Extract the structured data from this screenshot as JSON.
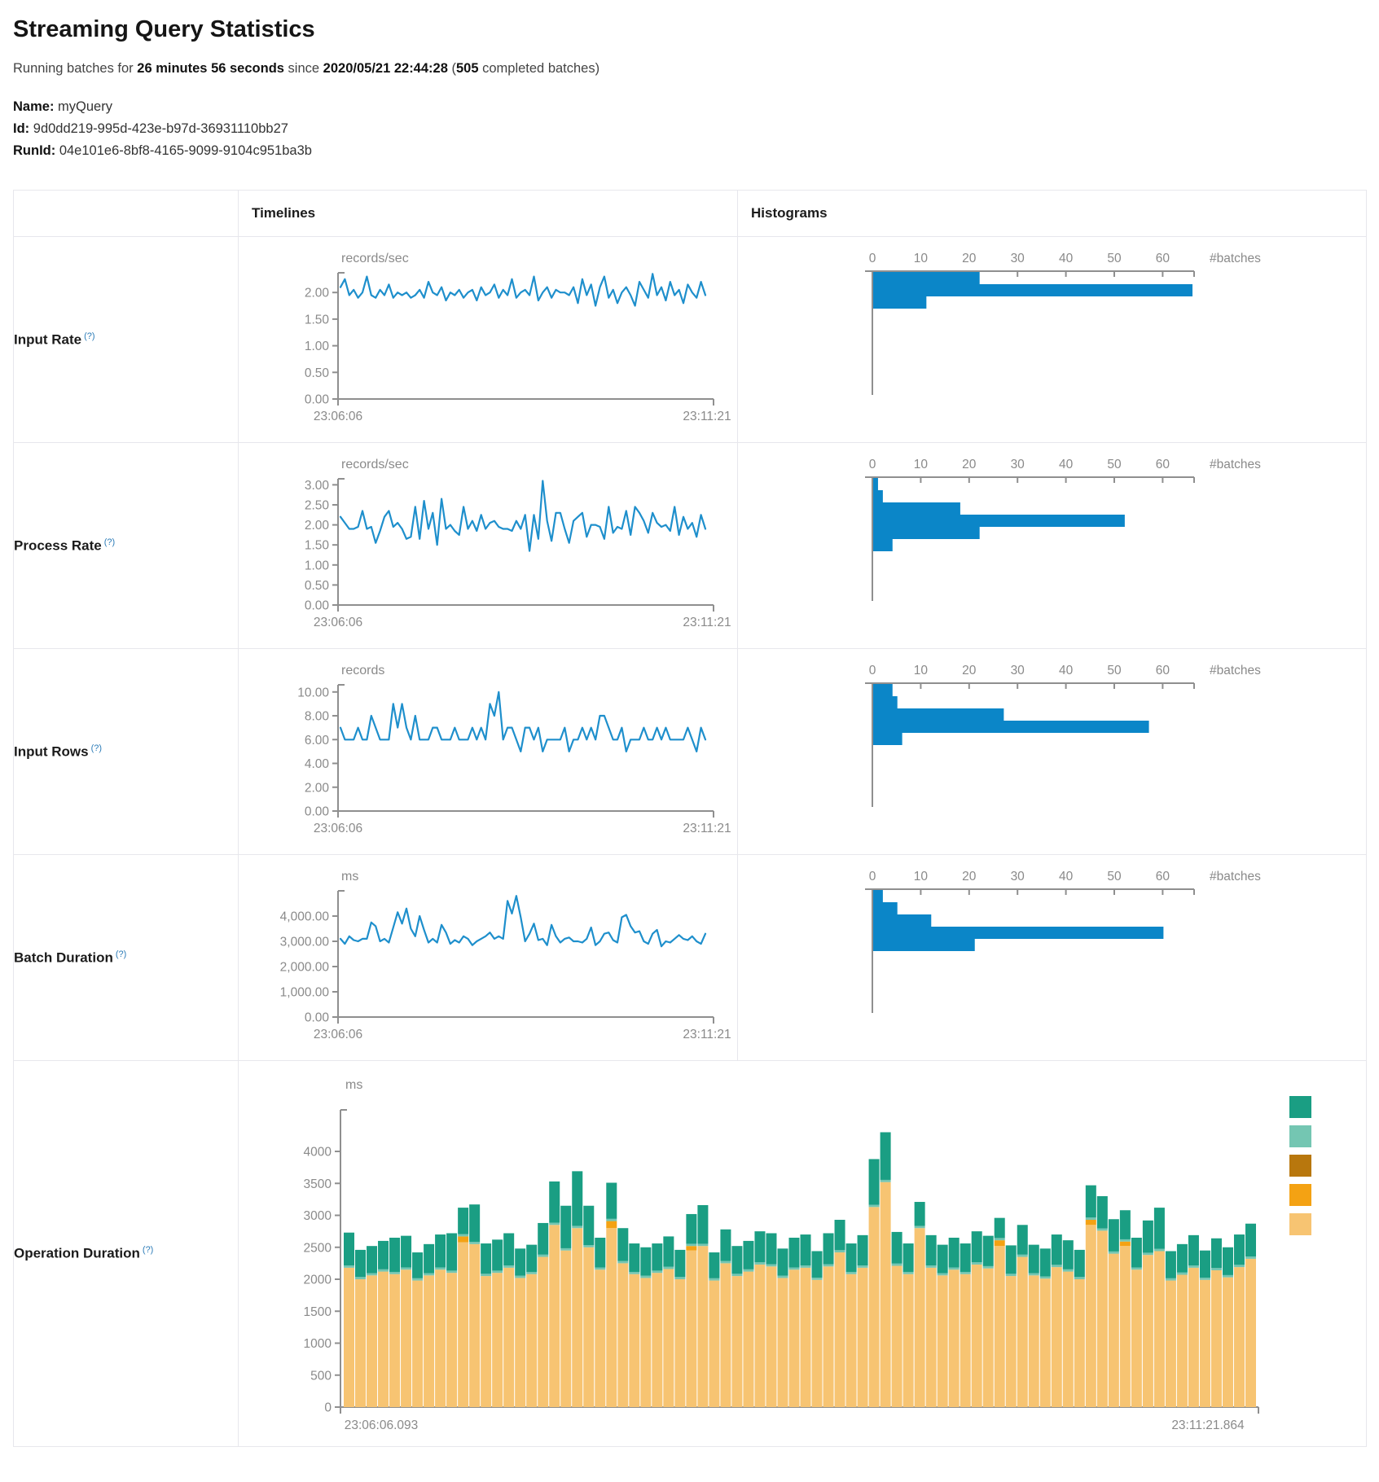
{
  "header": {
    "title": "Streaming Query Statistics",
    "running_prefix": "Running batches for",
    "duration": "26 minutes 56 seconds",
    "since_word": "since",
    "start_time": "2020/05/21 22:44:28",
    "paren_open": "(",
    "completed_count": "505",
    "completed_suffix": "completed batches)"
  },
  "query": {
    "name_label": "Name:",
    "name": "myQuery",
    "id_label": "Id:",
    "id": "9d0dd219-995d-423e-b97d-36931110bb27",
    "runid_label": "RunId:",
    "runid": "04e101e6-8bf8-4165-9099-9104c951ba3b"
  },
  "table": {
    "col_timelines": "Timelines",
    "col_histograms": "Histograms"
  },
  "colors": {
    "timeline_line": "#1e8fcc",
    "histogram_bar": "#0b86c8",
    "axis": "#8f8f8f",
    "tick_text": "#8a8a8a",
    "teal": "#1a9e83",
    "light_teal": "#74c6b2",
    "gold": "#b8770d",
    "orange": "#f4a213",
    "tan": "#f7c472"
  },
  "chart_data": {
    "rows": [
      {
        "label": "Input Rate",
        "help": "(?)",
        "timeline": {
          "type": "line",
          "unit": "records/sec",
          "x_start": "23:06:06",
          "x_end": "23:11:21",
          "ytick_values": [
            0,
            0.5,
            1,
            1.5,
            2
          ],
          "ytick_labels": [
            "0.00",
            "0.50",
            "1.00",
            "1.50",
            "2.00"
          ],
          "ymax": 2.37,
          "values": [
            2.1,
            2.25,
            1.95,
            2.05,
            1.9,
            2.0,
            2.3,
            1.95,
            1.9,
            2.05,
            1.95,
            2.15,
            1.9,
            2.0,
            1.95,
            2.0,
            1.9,
            1.95,
            2.05,
            1.9,
            2.2,
            2.0,
            1.95,
            2.1,
            1.85,
            2.0,
            1.95,
            2.05,
            1.9,
            2.0,
            2.05,
            1.85,
            2.1,
            1.95,
            2.0,
            2.15,
            1.9,
            2.05,
            1.95,
            2.25,
            1.9,
            2.0,
            2.05,
            1.95,
            2.3,
            1.85,
            2.0,
            2.1,
            1.9,
            2.05,
            2.0,
            2.0,
            1.95,
            2.1,
            1.8,
            2.25,
            1.95,
            2.15,
            1.75,
            2.1,
            2.3,
            1.9,
            2.05,
            1.8,
            2.0,
            2.1,
            1.95,
            1.75,
            2.2,
            2.05,
            1.9,
            2.35,
            1.95,
            2.1,
            1.85,
            2.2,
            1.95,
            2.05,
            1.8,
            2.15,
            2.0,
            1.9,
            2.2,
            1.95
          ]
        },
        "histogram": {
          "type": "bar-horizontal",
          "axis_label": "#batches",
          "tick_values": [
            0,
            10,
            20,
            30,
            40,
            50,
            60
          ],
          "xmax": 66.5,
          "values": [
            22,
            66,
            11
          ]
        }
      },
      {
        "label": "Process Rate",
        "help": "(?)",
        "timeline": {
          "type": "line",
          "unit": "records/sec",
          "x_start": "23:06:06",
          "x_end": "23:11:21",
          "ytick_values": [
            0,
            0.5,
            1,
            1.5,
            2,
            2.5,
            3
          ],
          "ytick_labels": [
            "0.00",
            "0.50",
            "1.00",
            "1.50",
            "2.00",
            "2.50",
            "3.00"
          ],
          "ymax": 3.15,
          "values": [
            2.2,
            2.05,
            1.9,
            1.9,
            1.95,
            2.35,
            1.9,
            1.95,
            1.55,
            1.85,
            2.2,
            2.35,
            1.95,
            2.05,
            1.9,
            1.65,
            1.7,
            2.45,
            1.65,
            2.6,
            1.9,
            2.3,
            1.5,
            2.65,
            1.9,
            2.0,
            1.85,
            1.75,
            2.45,
            1.9,
            2.1,
            1.85,
            2.25,
            1.9,
            2.05,
            2.1,
            1.95,
            1.9,
            1.9,
            1.85,
            2.1,
            1.9,
            2.25,
            1.35,
            2.25,
            1.65,
            3.1,
            2.1,
            1.6,
            2.3,
            2.3,
            1.9,
            1.55,
            2.1,
            2.2,
            2.3,
            1.7,
            2.0,
            2.0,
            1.95,
            1.65,
            2.45,
            1.8,
            1.95,
            1.9,
            2.35,
            1.75,
            2.45,
            2.3,
            2.1,
            1.8,
            2.3,
            2.05,
            1.95,
            2.0,
            1.85,
            2.45,
            1.75,
            2.2,
            1.9,
            2.05,
            1.7,
            2.25,
            1.9
          ]
        },
        "histogram": {
          "type": "bar-horizontal",
          "axis_label": "#batches",
          "tick_values": [
            0,
            10,
            20,
            30,
            40,
            50,
            60
          ],
          "xmax": 66.5,
          "values": [
            1,
            2,
            18,
            52,
            22,
            4
          ]
        }
      },
      {
        "label": "Input Rows",
        "help": "(?)",
        "timeline": {
          "type": "line",
          "unit": "records",
          "x_start": "23:06:06",
          "x_end": "23:11:21",
          "ytick_values": [
            0,
            2,
            4,
            6,
            8,
            10
          ],
          "ytick_labels": [
            "0.00",
            "2.00",
            "4.00",
            "6.00",
            "8.00",
            "10.00"
          ],
          "ymax": 10.6,
          "values": [
            7,
            6,
            6,
            6,
            7,
            6,
            6,
            8,
            7,
            6,
            6,
            6,
            9,
            7,
            9,
            7,
            6,
            8,
            6,
            6,
            6,
            7,
            7,
            6,
            6,
            6,
            7,
            6,
            6,
            6,
            7,
            6,
            7,
            6,
            9,
            8,
            10,
            6,
            7,
            7,
            6,
            5,
            7,
            7,
            6,
            7,
            5,
            6,
            6,
            6,
            6,
            7,
            5,
            6,
            6,
            7,
            6,
            7,
            6,
            8,
            8,
            7,
            6,
            6,
            7,
            5,
            6,
            6,
            6,
            7,
            6,
            6,
            7,
            6,
            7,
            6,
            6,
            6,
            6,
            7,
            6,
            5,
            7,
            6
          ]
        },
        "histogram": {
          "type": "bar-horizontal",
          "axis_label": "#batches",
          "tick_values": [
            0,
            10,
            20,
            30,
            40,
            50,
            60
          ],
          "xmax": 66.5,
          "values": [
            4,
            5,
            27,
            57,
            6
          ]
        }
      },
      {
        "label": "Batch Duration",
        "help": "(?)",
        "timeline": {
          "type": "line",
          "unit": "ms",
          "x_start": "23:06:06",
          "x_end": "23:11:21",
          "ytick_values": [
            0,
            1000,
            2000,
            3000,
            4000
          ],
          "ytick_labels": [
            "0.00",
            "1,000.00",
            "2,000.00",
            "3,000.00",
            "4,000.00"
          ],
          "ymax": 5000,
          "values": [
            3100,
            2900,
            3200,
            3050,
            3000,
            3100,
            3100,
            3750,
            3600,
            3000,
            3100,
            2950,
            3550,
            4150,
            3700,
            4300,
            3500,
            3200,
            4000,
            3450,
            2950,
            3100,
            2950,
            3650,
            3350,
            2900,
            3050,
            2950,
            3200,
            3100,
            2850,
            3000,
            3100,
            3200,
            3350,
            3100,
            3200,
            3100,
            4600,
            4100,
            4800,
            3950,
            3000,
            3300,
            3700,
            3050,
            3100,
            2850,
            3650,
            3200,
            2950,
            3100,
            3150,
            3000,
            3000,
            2950,
            3100,
            3550,
            2850,
            3000,
            3300,
            3350,
            3050,
            2950,
            3950,
            4050,
            3600,
            3350,
            3400,
            3000,
            2900,
            3300,
            3450,
            2800,
            3000,
            2950,
            3100,
            3250,
            3100,
            3050,
            3200,
            3000,
            2900,
            3300
          ]
        },
        "histogram": {
          "type": "bar-horizontal",
          "axis_label": "#batches",
          "tick_values": [
            0,
            10,
            20,
            30,
            40,
            50,
            60
          ],
          "xmax": 66.5,
          "values": [
            2,
            5,
            12,
            60,
            21
          ]
        }
      },
      {
        "label": "Operation Duration",
        "help": "(?)",
        "stacked": {
          "type": "stacked-bar",
          "unit": "ms",
          "x_start": "23:06:06.093",
          "x_end": "23:11:21.864",
          "ytick_values": [
            0,
            500,
            1000,
            1500,
            2000,
            2500,
            3000,
            3500,
            4000
          ],
          "ytick_labels": [
            "0",
            "500",
            "1000",
            "1500",
            "2000",
            "2500",
            "3000",
            "3500",
            "4000"
          ],
          "ymax": 4650,
          "segment_color_keys": [
            "tan",
            "orange",
            "light_teal",
            "teal"
          ],
          "legend_color_keys": [
            "teal",
            "light_teal",
            "gold",
            "orange",
            "tan"
          ],
          "bars": [
            [
              2180,
              0,
              35,
              515
            ],
            [
              2000,
              0,
              35,
              425
            ],
            [
              2060,
              0,
              35,
              425
            ],
            [
              2120,
              0,
              35,
              445
            ],
            [
              2080,
              0,
              35,
              535
            ],
            [
              2150,
              0,
              35,
              495
            ],
            [
              1980,
              0,
              35,
              405
            ],
            [
              2060,
              0,
              35,
              455
            ],
            [
              2150,
              0,
              35,
              515
            ],
            [
              2100,
              0,
              35,
              585
            ],
            [
              2580,
              90,
              35,
              415
            ],
            [
              2550,
              0,
              35,
              585
            ],
            [
              2050,
              0,
              35,
              475
            ],
            [
              2100,
              0,
              35,
              485
            ],
            [
              2180,
              0,
              35,
              505
            ],
            [
              2020,
              0,
              35,
              425
            ],
            [
              2080,
              0,
              35,
              425
            ],
            [
              2350,
              0,
              35,
              495
            ],
            [
              2850,
              0,
              35,
              645
            ],
            [
              2450,
              0,
              35,
              665
            ],
            [
              2800,
              0,
              35,
              855
            ],
            [
              2500,
              0,
              35,
              615
            ],
            [
              2150,
              0,
              35,
              465
            ],
            [
              2800,
              110,
              35,
              565
            ],
            [
              2250,
              0,
              35,
              515
            ],
            [
              2080,
              0,
              35,
              445
            ],
            [
              2020,
              0,
              35,
              445
            ],
            [
              2100,
              0,
              35,
              425
            ],
            [
              2160,
              0,
              35,
              475
            ],
            [
              2000,
              0,
              35,
              425
            ],
            [
              2450,
              70,
              35,
              465
            ],
            [
              2520,
              0,
              35,
              605
            ],
            [
              1980,
              0,
              35,
              405
            ],
            [
              2250,
              0,
              35,
              495
            ],
            [
              2050,
              0,
              35,
              435
            ],
            [
              2120,
              0,
              35,
              445
            ],
            [
              2230,
              0,
              35,
              485
            ],
            [
              2200,
              0,
              35,
              485
            ],
            [
              2020,
              0,
              35,
              425
            ],
            [
              2150,
              0,
              35,
              465
            ],
            [
              2180,
              0,
              35,
              485
            ],
            [
              1990,
              0,
              35,
              415
            ],
            [
              2200,
              0,
              35,
              485
            ],
            [
              2420,
              0,
              35,
              475
            ],
            [
              2080,
              0,
              35,
              445
            ],
            [
              2180,
              0,
              35,
              475
            ],
            [
              3130,
              0,
              35,
              715
            ],
            [
              3520,
              0,
              35,
              745
            ],
            [
              2210,
              0,
              35,
              495
            ],
            [
              2080,
              0,
              35,
              445
            ],
            [
              2800,
              0,
              35,
              375
            ],
            [
              2180,
              0,
              35,
              475
            ],
            [
              2060,
              0,
              35,
              445
            ],
            [
              2150,
              0,
              35,
              465
            ],
            [
              2080,
              0,
              35,
              445
            ],
            [
              2230,
              0,
              35,
              485
            ],
            [
              2170,
              0,
              35,
              475
            ],
            [
              2520,
              90,
              35,
              315
            ],
            [
              2050,
              0,
              35,
              445
            ],
            [
              2350,
              0,
              35,
              465
            ],
            [
              2060,
              0,
              35,
              445
            ],
            [
              2010,
              0,
              35,
              435
            ],
            [
              2190,
              0,
              35,
              475
            ],
            [
              2120,
              0,
              35,
              455
            ],
            [
              2000,
              0,
              35,
              425
            ],
            [
              2850,
              80,
              35,
              505
            ],
            [
              2760,
              0,
              35,
              505
            ],
            [
              2400,
              0,
              35,
              505
            ],
            [
              2520,
              70,
              35,
              455
            ],
            [
              2150,
              0,
              35,
              465
            ],
            [
              2380,
              0,
              35,
              505
            ],
            [
              2440,
              0,
              35,
              645
            ],
            [
              1980,
              0,
              35,
              425
            ],
            [
              2070,
              0,
              35,
              445
            ],
            [
              2180,
              0,
              35,
              475
            ],
            [
              1990,
              0,
              35,
              425
            ],
            [
              2140,
              0,
              35,
              465
            ],
            [
              2030,
              0,
              35,
              435
            ],
            [
              2190,
              0,
              35,
              475
            ],
            [
              2320,
              0,
              35,
              515
            ]
          ]
        }
      }
    ]
  }
}
